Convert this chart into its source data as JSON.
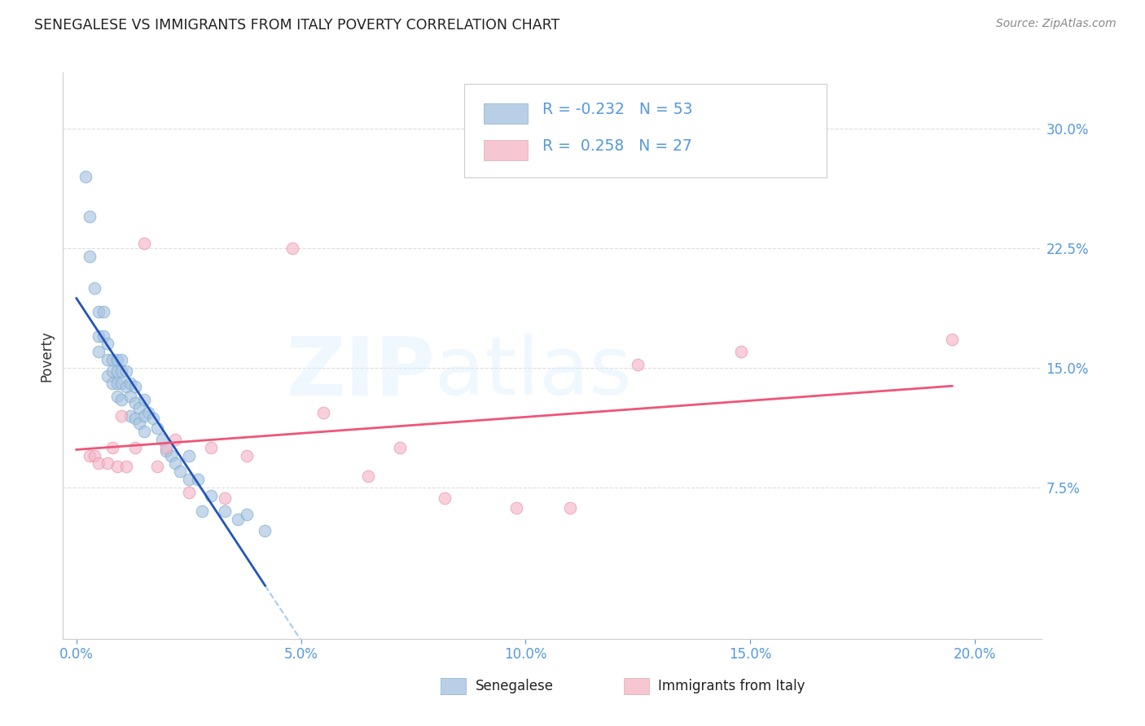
{
  "title": "SENEGALESE VS IMMIGRANTS FROM ITALY POVERTY CORRELATION CHART",
  "source": "Source: ZipAtlas.com",
  "ylabel": "Poverty",
  "x_ticks": [
    0.0,
    0.05,
    0.1,
    0.15,
    0.2
  ],
  "x_tick_labels": [
    "0.0%",
    "5.0%",
    "10.0%",
    "15.0%",
    "20.0%"
  ],
  "y_ticks": [
    0.075,
    0.15,
    0.225,
    0.3
  ],
  "y_tick_labels": [
    "7.5%",
    "15.0%",
    "22.5%",
    "30.0%"
  ],
  "y_lim": [
    -0.02,
    0.335
  ],
  "x_lim": [
    -0.003,
    0.215
  ],
  "legend_text_1": "R = -0.232   N = 53",
  "legend_text_2": "R =  0.258   N = 27",
  "blue_scatter_color": "#A8C4E0",
  "pink_scatter_color": "#F4B8C8",
  "blue_line_color": "#2255BB",
  "pink_line_color": "#EE5577",
  "dashed_line_color": "#AACCEE",
  "tick_color": "#5599DD",
  "grid_color": "#DDDDDD",
  "senegalese_x": [
    0.002,
    0.003,
    0.003,
    0.004,
    0.005,
    0.005,
    0.005,
    0.006,
    0.006,
    0.007,
    0.007,
    0.007,
    0.008,
    0.008,
    0.008,
    0.009,
    0.009,
    0.009,
    0.009,
    0.01,
    0.01,
    0.01,
    0.01,
    0.011,
    0.011,
    0.012,
    0.012,
    0.012,
    0.013,
    0.013,
    0.013,
    0.014,
    0.014,
    0.015,
    0.015,
    0.015,
    0.016,
    0.017,
    0.018,
    0.019,
    0.02,
    0.021,
    0.022,
    0.023,
    0.025,
    0.025,
    0.027,
    0.028,
    0.03,
    0.033,
    0.036,
    0.038,
    0.042
  ],
  "senegalese_y": [
    0.27,
    0.245,
    0.22,
    0.2,
    0.185,
    0.17,
    0.16,
    0.185,
    0.17,
    0.165,
    0.155,
    0.145,
    0.155,
    0.148,
    0.14,
    0.155,
    0.148,
    0.14,
    0.132,
    0.155,
    0.148,
    0.14,
    0.13,
    0.148,
    0.138,
    0.14,
    0.132,
    0.12,
    0.138,
    0.128,
    0.118,
    0.125,
    0.115,
    0.13,
    0.12,
    0.11,
    0.122,
    0.118,
    0.112,
    0.105,
    0.098,
    0.095,
    0.09,
    0.085,
    0.095,
    0.08,
    0.08,
    0.06,
    0.07,
    0.06,
    0.055,
    0.058,
    0.048
  ],
  "italy_x": [
    0.003,
    0.004,
    0.005,
    0.007,
    0.008,
    0.009,
    0.01,
    0.011,
    0.013,
    0.015,
    0.018,
    0.02,
    0.022,
    0.025,
    0.03,
    0.033,
    0.038,
    0.048,
    0.055,
    0.065,
    0.072,
    0.082,
    0.098,
    0.11,
    0.125,
    0.148,
    0.195
  ],
  "italy_y": [
    0.095,
    0.095,
    0.09,
    0.09,
    0.1,
    0.088,
    0.12,
    0.088,
    0.1,
    0.228,
    0.088,
    0.1,
    0.105,
    0.072,
    0.1,
    0.068,
    0.095,
    0.225,
    0.122,
    0.082,
    0.1,
    0.068,
    0.062,
    0.062,
    0.152,
    0.16,
    0.168
  ]
}
